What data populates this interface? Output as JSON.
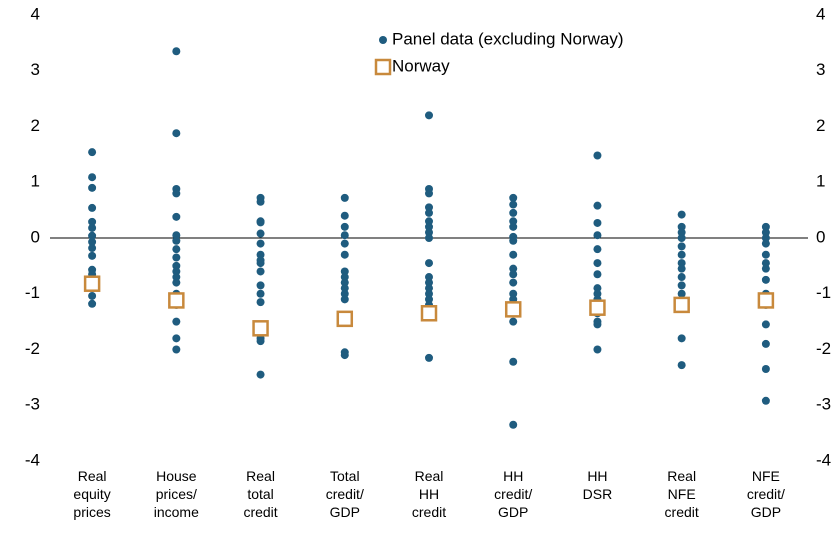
{
  "chart_data": {
    "type": "strip",
    "categories": [
      "Real equity prices",
      "House prices/ income",
      "Real total credit",
      "Total credit/ GDP",
      "Real HH credit",
      "HH credit/ GDP",
      "HH DSR",
      "Real NFE credit",
      "NFE credit/ GDP"
    ],
    "series": [
      {
        "name": "Panel data (excluding Norway)",
        "color": "#1f5c7f",
        "marker": "dot",
        "values": [
          [
            1.54,
            1.09,
            0.9,
            0.54,
            0.29,
            0.18,
            0.04,
            -0.07,
            -0.18,
            -0.32,
            -0.57,
            -0.65,
            -0.9,
            -1.04,
            -1.18
          ],
          [
            3.35,
            1.88,
            0.88,
            0.8,
            0.38,
            0.05,
            -0.05,
            -0.2,
            -0.35,
            -0.5,
            -0.6,
            -0.7,
            -0.8,
            -1.0,
            -1.1,
            -1.2,
            -1.5,
            -1.8,
            -2.0
          ],
          [
            0.72,
            0.65,
            0.3,
            0.28,
            0.08,
            -0.1,
            -0.3,
            -0.4,
            -0.45,
            -0.6,
            -0.85,
            -1.0,
            -1.15,
            -1.8,
            -1.85,
            -2.45
          ],
          [
            0.72,
            0.4,
            0.2,
            0.05,
            -0.1,
            -0.3,
            -0.6,
            -0.7,
            -0.8,
            -0.9,
            -1.0,
            -1.1,
            -2.05,
            -2.1
          ],
          [
            2.2,
            0.88,
            0.8,
            0.55,
            0.45,
            0.3,
            0.2,
            0.1,
            0,
            -0.45,
            -0.7,
            -0.8,
            -0.9,
            -1.0,
            -1.1,
            -1.2,
            -2.15
          ],
          [
            0.72,
            0.6,
            0.45,
            0.3,
            0.2,
            0.02,
            -0.05,
            -0.3,
            -0.55,
            -0.65,
            -0.8,
            -1.0,
            -1.1,
            -1.2,
            -1.35,
            -1.5,
            -2.22,
            -3.35
          ],
          [
            1.48,
            0.58,
            0.27,
            0.05,
            -0.2,
            -0.45,
            -0.65,
            -0.9,
            -1.0,
            -1.1,
            -1.2,
            -1.35,
            -1.5,
            -1.55,
            -2.0
          ],
          [
            0.42,
            0.2,
            0.1,
            0,
            -0.15,
            -0.3,
            -0.45,
            -0.55,
            -0.7,
            -0.85,
            -1.0,
            -1.15,
            -1.25,
            -1.8,
            -2.28
          ],
          [
            0.2,
            0.1,
            0,
            -0.1,
            -0.3,
            -0.45,
            -0.55,
            -0.75,
            -1.0,
            -1.2,
            -1.55,
            -1.9,
            -2.35,
            -2.92
          ]
        ]
      },
      {
        "name": "Norway",
        "color": "#c8893c",
        "marker": "square",
        "values": [
          -0.82,
          -1.12,
          -1.62,
          -1.45,
          -1.35,
          -1.28,
          -1.25,
          -1.2,
          -1.12
        ]
      }
    ],
    "ylim": [
      -4,
      4
    ],
    "yticks": [
      -4,
      -3,
      -2,
      -1,
      0,
      1,
      2,
      3,
      4
    ],
    "y2lim": [
      -4,
      4
    ],
    "y2ticks": [
      -4,
      -3,
      -2,
      -1,
      0,
      1,
      2,
      3,
      4
    ],
    "legend": "top"
  }
}
